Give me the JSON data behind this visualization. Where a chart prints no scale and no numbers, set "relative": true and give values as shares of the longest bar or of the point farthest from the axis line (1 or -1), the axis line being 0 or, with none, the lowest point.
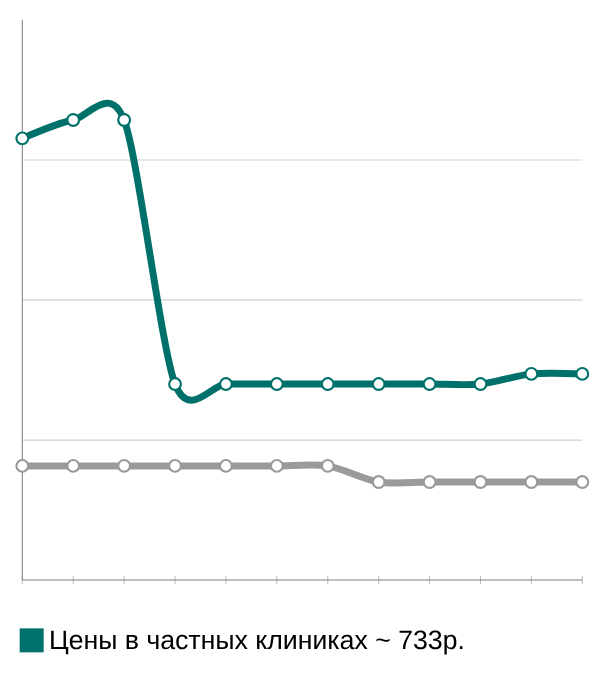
{
  "chart_data": {
    "type": "line",
    "relative": true,
    "categories": [
      null,
      null,
      null,
      null,
      null,
      null,
      null,
      null,
      null,
      null,
      null,
      null
    ],
    "series": [
      {
        "name": "Цены в частных клиниках ~ 733р.",
        "color": "#00706a",
        "values": [
          0.96,
          1,
          1,
          0.426,
          0.426,
          0.426,
          0.426,
          0.426,
          0.426,
          0.426,
          0.448,
          0.448
        ]
      },
      {
        "color": "#9a9a9a",
        "values": [
          0.248,
          0.248,
          0.248,
          0.248,
          0.248,
          0.248,
          0.248,
          0.213,
          0.213,
          0.213,
          0.213,
          0.213
        ]
      }
    ],
    "grid": "y",
    "legend": "bottom",
    "marker": "circle",
    "line_style": "solid"
  }
}
